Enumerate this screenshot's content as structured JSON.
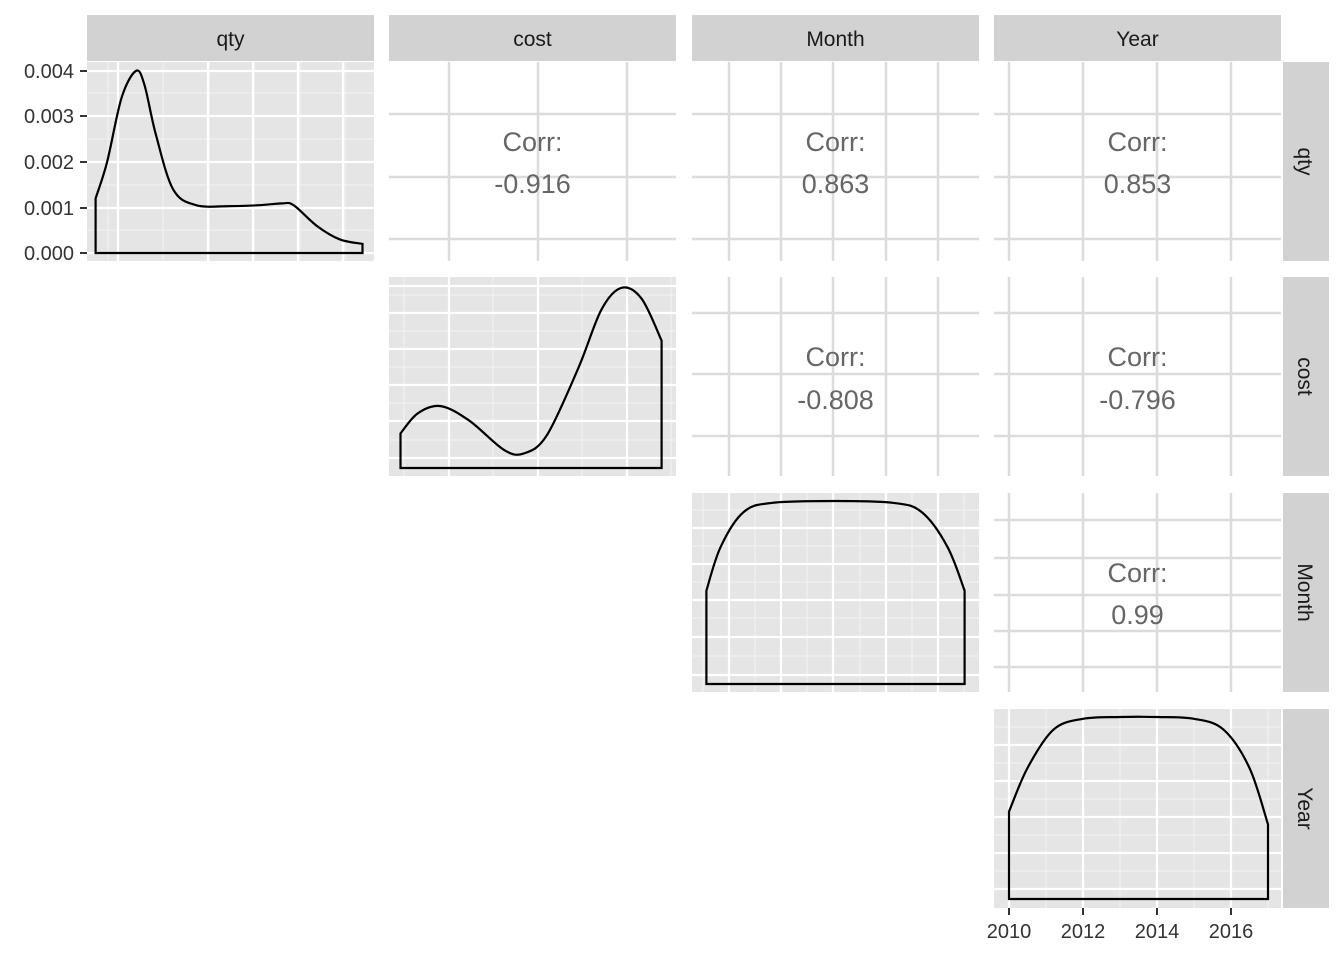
{
  "chart_data": {
    "type": "scatterplot-matrix",
    "variables": [
      "qty",
      "cost",
      "Month",
      "Year"
    ],
    "diagonal": [
      {
        "variable": "qty",
        "type": "density",
        "y_ticks": [
          "0.000",
          "0.001",
          "0.002",
          "0.003",
          "0.004"
        ],
        "ylim": [
          0,
          0.0041
        ],
        "curve": [
          [
            0.03,
            0.0012
          ],
          [
            0.07,
            0.002
          ],
          [
            0.12,
            0.0034
          ],
          [
            0.17,
            0.004
          ],
          [
            0.2,
            0.0037
          ],
          [
            0.24,
            0.0026
          ],
          [
            0.3,
            0.0014
          ],
          [
            0.38,
            0.00105
          ],
          [
            0.5,
            0.00103
          ],
          [
            0.6,
            0.00105
          ],
          [
            0.68,
            0.00109
          ],
          [
            0.72,
            0.00105
          ],
          [
            0.8,
            0.0006
          ],
          [
            0.88,
            0.0003
          ],
          [
            0.96,
            0.0002
          ]
        ]
      },
      {
        "variable": "cost",
        "type": "density",
        "curve": [
          [
            0.04,
            0.19
          ],
          [
            0.1,
            0.3
          ],
          [
            0.18,
            0.34
          ],
          [
            0.28,
            0.26
          ],
          [
            0.4,
            0.1
          ],
          [
            0.47,
            0.08
          ],
          [
            0.55,
            0.18
          ],
          [
            0.66,
            0.55
          ],
          [
            0.74,
            0.87
          ],
          [
            0.81,
            0.99
          ],
          [
            0.88,
            0.93
          ],
          [
            0.95,
            0.7
          ]
        ]
      },
      {
        "variable": "Month",
        "type": "density",
        "curve": [
          [
            0.05,
            0.51
          ],
          [
            0.1,
            0.75
          ],
          [
            0.18,
            0.94
          ],
          [
            0.28,
            0.99
          ],
          [
            0.5,
            1.0
          ],
          [
            0.7,
            0.99
          ],
          [
            0.8,
            0.94
          ],
          [
            0.89,
            0.75
          ],
          [
            0.95,
            0.51
          ]
        ]
      },
      {
        "variable": "Year",
        "type": "density",
        "x_ticks": [
          "2010",
          "2012",
          "2014",
          "2016"
        ],
        "xlim": [
          2009.5,
          2017.3
        ],
        "curve": [
          [
            2010,
            0.48
          ],
          [
            2010.5,
            0.72
          ],
          [
            2011.2,
            0.93
          ],
          [
            2012,
            0.99
          ],
          [
            2013,
            1.0
          ],
          [
            2014,
            1.0
          ],
          [
            2015,
            0.99
          ],
          [
            2015.8,
            0.93
          ],
          [
            2016.5,
            0.72
          ],
          [
            2017,
            0.41
          ]
        ]
      }
    ],
    "correlations": [
      {
        "row": "qty",
        "col": "cost",
        "label": "Corr:",
        "value": "-0.916"
      },
      {
        "row": "qty",
        "col": "Month",
        "label": "Corr:",
        "value": "0.863"
      },
      {
        "row": "qty",
        "col": "Year",
        "label": "Corr:",
        "value": "0.853"
      },
      {
        "row": "cost",
        "col": "Month",
        "label": "Corr:",
        "value": "-0.808"
      },
      {
        "row": "cost",
        "col": "Year",
        "label": "Corr:",
        "value": "-0.796"
      },
      {
        "row": "Month",
        "col": "Year",
        "label": "Corr:",
        "value": "0.99"
      }
    ]
  },
  "colors": {
    "panel_bg": "#e5e5e5",
    "strip_bg": "#d2d2d2",
    "grid_major": "#ffffff",
    "corr_grid": "#dcdcdc",
    "density_line": "#000000"
  }
}
